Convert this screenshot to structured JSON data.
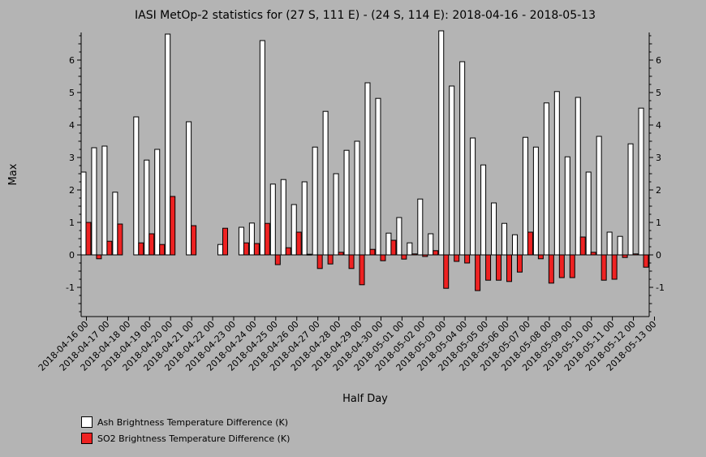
{
  "chart_data": {
    "type": "bar",
    "title": "IASI MetOp-2 statistics for (27 S, 111 E) - (24 S, 114 E): 2018-04-16 - 2018-05-13",
    "xlabel": "Half Day",
    "ylabel": "Max",
    "ylim": [
      -1.9,
      6.85
    ],
    "yticks": [
      -1,
      0,
      1,
      2,
      3,
      4,
      5,
      6
    ],
    "ytick_labels": [
      "-1",
      "0",
      "1",
      "2",
      "3",
      "4",
      "5",
      "6"
    ],
    "grid": false,
    "legend_position": "bottom-left",
    "x_tick_labels": [
      "2018-04-16 00",
      "2018-04-17 00",
      "2018-04-18 00",
      "2018-04-19 00",
      "2018-04-20 00",
      "2018-04-21 00",
      "2018-04-22 00",
      "2018-04-23 00",
      "2018-04-24 00",
      "2018-04-25 00",
      "2018-04-26 00",
      "2018-04-27 00",
      "2018-04-28 00",
      "2018-04-29 00",
      "2018-04-30 00",
      "2018-05-01 00",
      "2018-05-02 00",
      "2018-05-03 00",
      "2018-05-04 00",
      "2018-05-05 00",
      "2018-05-06 00",
      "2018-05-07 00",
      "2018-05-08 00",
      "2018-05-09 00",
      "2018-05-10 00",
      "2018-05-11 00",
      "2018-05-12 00",
      "2018-05-13 00"
    ],
    "series": [
      {
        "name": "Ash Brightness Temperature Difference (K)",
        "color": "#ffffff",
        "values": [
          2.55,
          3.3,
          3.35,
          1.93,
          null,
          4.25,
          2.92,
          3.25,
          6.8,
          null,
          4.1,
          null,
          null,
          0.32,
          null,
          0.85,
          0.98,
          6.6,
          2.18,
          2.32,
          1.55,
          2.25,
          3.32,
          4.42,
          2.5,
          3.22,
          3.5,
          5.3,
          4.82,
          0.67,
          1.15,
          0.37,
          1.72,
          0.65,
          6.9,
          5.2,
          5.95,
          3.6,
          2.77,
          1.6,
          0.97,
          0.62,
          3.62,
          3.32,
          4.68,
          5.03,
          3.02,
          4.85,
          2.55,
          3.65,
          0.7,
          0.57,
          3.42,
          4.52
        ]
      },
      {
        "name": "SO2 Brightness Temperature Difference (K)",
        "color": "#ee2222",
        "values": [
          1.0,
          -0.12,
          0.42,
          0.95,
          null,
          0.37,
          0.65,
          0.32,
          1.8,
          null,
          0.9,
          null,
          null,
          0.82,
          null,
          0.37,
          0.35,
          0.97,
          -0.3,
          0.22,
          0.7,
          0.02,
          -0.42,
          -0.28,
          0.08,
          -0.42,
          -0.92,
          0.17,
          -0.18,
          0.45,
          -0.13,
          0.03,
          -0.05,
          0.13,
          -1.03,
          -0.2,
          -0.25,
          -1.1,
          -0.78,
          -0.78,
          -0.82,
          -0.53,
          0.7,
          -0.12,
          -0.87,
          -0.7,
          -0.7,
          0.55,
          0.08,
          -0.78,
          -0.75,
          -0.08,
          0.03,
          -0.38
        ]
      }
    ]
  }
}
